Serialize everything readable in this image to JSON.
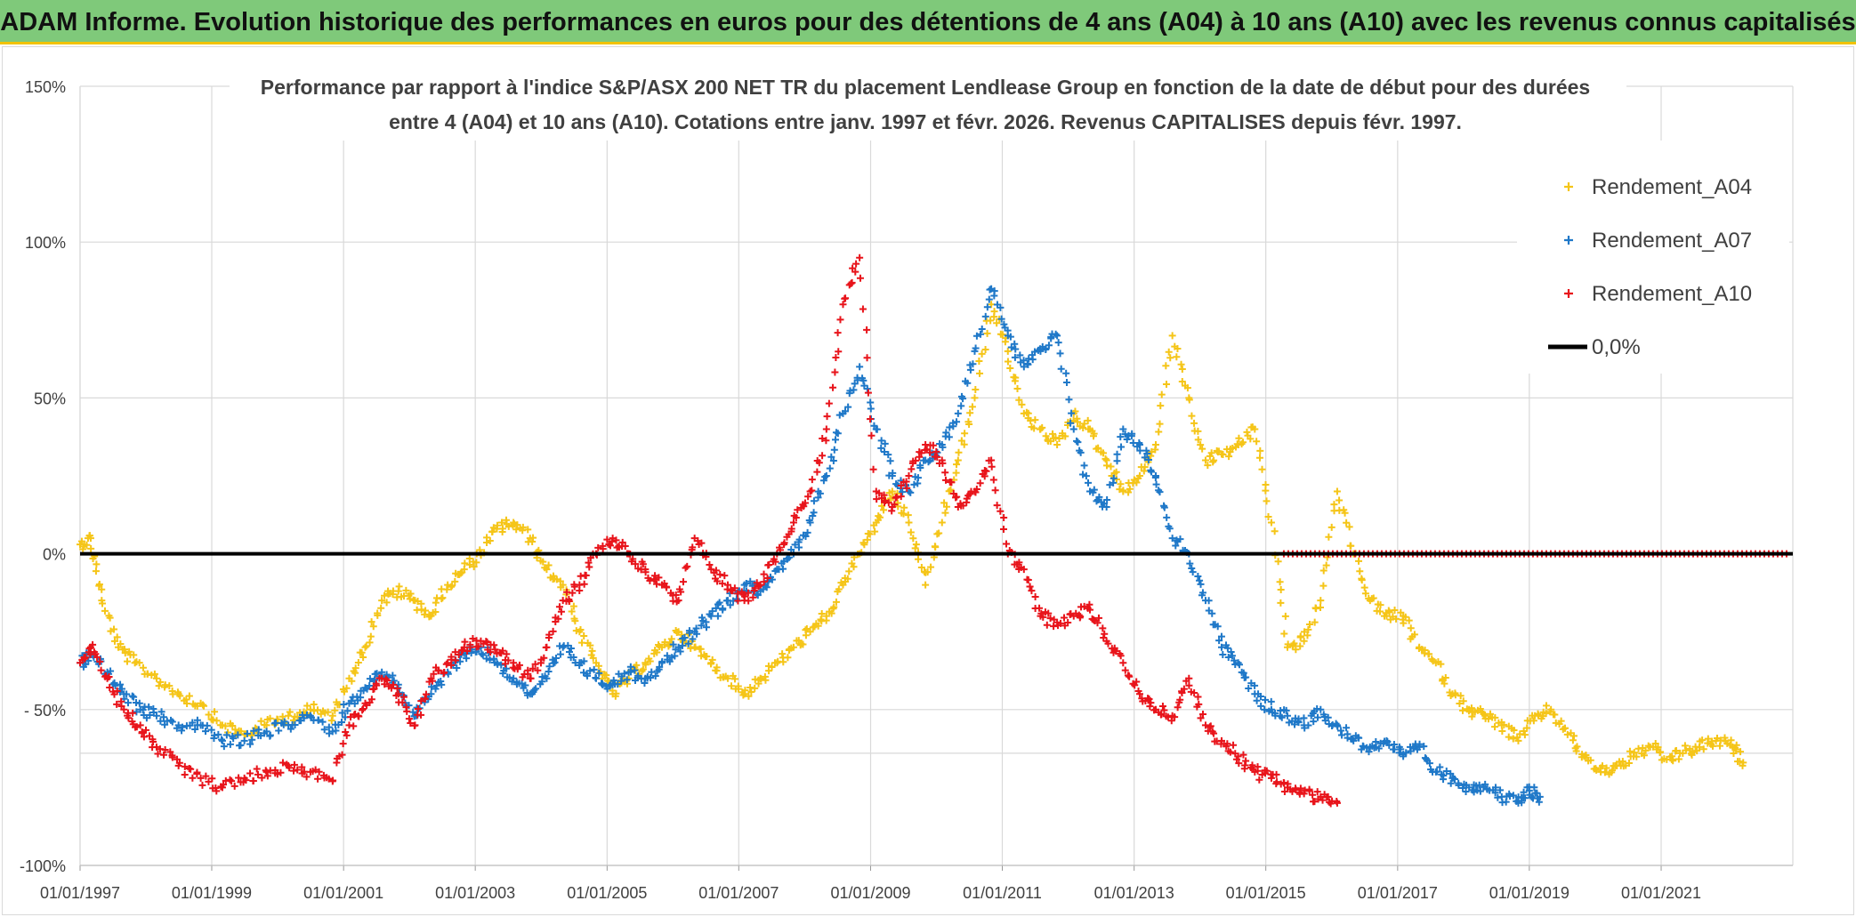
{
  "header": {
    "title": "ADAM Informe. Evolution historique des performances en euros pour des détentions de 4 ans (A04) à 10 ans (A10) avec les revenus connus capitalisés"
  },
  "chart_data": {
    "type": "scatter",
    "title": "Performance par rapport à l'indice S&P/ASX 200 NET TR  du placement Lendlease Group en fonction de la date de début pour des durées",
    "subtitle": "entre 4 (A04) et 10 ans (A10). Cotations entre janv. 1997 et févr. 2026. Revenus CAPITALISES depuis févr. 1997.",
    "xlabel": "",
    "ylabel": "",
    "x_range": [
      "1997-01-01",
      "2023-01-01"
    ],
    "ylim": [
      -100,
      150
    ],
    "y_ticks": [
      150,
      100,
      50,
      0,
      -50,
      -100
    ],
    "y_tick_labels": [
      "150%",
      "100%",
      "50%",
      "0%",
      "- 50%",
      "-100%"
    ],
    "x_tick_labels": [
      "01/01/1997",
      "01/01/1999",
      "01/01/2001",
      "01/01/2003",
      "01/01/2005",
      "01/01/2007",
      "01/01/2009",
      "01/01/2011",
      "01/01/2013",
      "01/01/2015",
      "01/01/2017",
      "01/01/2019",
      "01/01/2021"
    ],
    "grid": true,
    "legend_position": "top-right",
    "legend": [
      "Rendement_A04",
      "Rendement_A07",
      "Rendement_A10",
      "0,0%"
    ],
    "reference_line": {
      "name": "0,0%",
      "value": 0,
      "color": "#000000"
    },
    "series": [
      {
        "name": "Rendement_A04",
        "color": "#f5c518",
        "marker": "+",
        "points": [
          [
            "1997-01-01",
            3
          ],
          [
            "1997-03-01",
            5
          ],
          [
            "1997-05-01",
            -15
          ],
          [
            "1997-08-01",
            -30
          ],
          [
            "1997-11-01",
            -35
          ],
          [
            "1998-03-01",
            -40
          ],
          [
            "1998-07-01",
            -45
          ],
          [
            "1998-11-01",
            -48
          ],
          [
            "1999-03-01",
            -55
          ],
          [
            "1999-07-01",
            -58
          ],
          [
            "1999-11-01",
            -55
          ],
          [
            "2000-03-01",
            -52
          ],
          [
            "2000-07-01",
            -50
          ],
          [
            "2000-11-01",
            -52
          ],
          [
            "2001-02-01",
            -40
          ],
          [
            "2001-05-01",
            -30
          ],
          [
            "2001-08-01",
            -15
          ],
          [
            "2001-11-01",
            -12
          ],
          [
            "2002-02-01",
            -15
          ],
          [
            "2002-05-01",
            -20
          ],
          [
            "2002-08-01",
            -10
          ],
          [
            "2002-11-01",
            -5
          ],
          [
            "2003-02-01",
            0
          ],
          [
            "2003-05-01",
            8
          ],
          [
            "2003-08-01",
            10
          ],
          [
            "2003-11-01",
            5
          ],
          [
            "2004-02-01",
            -5
          ],
          [
            "2004-05-01",
            -10
          ],
          [
            "2004-08-01",
            -25
          ],
          [
            "2004-11-01",
            -35
          ],
          [
            "2005-02-01",
            -45
          ],
          [
            "2005-05-01",
            -40
          ],
          [
            "2005-08-01",
            -35
          ],
          [
            "2005-11-01",
            -30
          ],
          [
            "2006-02-01",
            -25
          ],
          [
            "2006-05-01",
            -30
          ],
          [
            "2006-08-01",
            -35
          ],
          [
            "2006-11-01",
            -40
          ],
          [
            "2007-02-01",
            -45
          ],
          [
            "2007-05-01",
            -40
          ],
          [
            "2007-08-01",
            -35
          ],
          [
            "2007-11-01",
            -30
          ],
          [
            "2008-02-01",
            -25
          ],
          [
            "2008-05-01",
            -20
          ],
          [
            "2008-08-01",
            -10
          ],
          [
            "2008-11-01",
            0
          ],
          [
            "2009-02-01",
            10
          ],
          [
            "2009-05-01",
            20
          ],
          [
            "2009-08-01",
            10
          ],
          [
            "2009-11-01",
            -10
          ],
          [
            "2010-02-01",
            10
          ],
          [
            "2010-05-01",
            30
          ],
          [
            "2010-08-01",
            50
          ],
          [
            "2010-11-01",
            80
          ],
          [
            "2011-02-01",
            65
          ],
          [
            "2011-05-01",
            45
          ],
          [
            "2011-08-01",
            40
          ],
          [
            "2011-11-01",
            35
          ],
          [
            "2012-02-01",
            45
          ],
          [
            "2012-05-01",
            40
          ],
          [
            "2012-08-01",
            30
          ],
          [
            "2012-11-01",
            20
          ],
          [
            "2013-02-01",
            25
          ],
          [
            "2013-05-01",
            35
          ],
          [
            "2013-08-01",
            70
          ],
          [
            "2013-11-01",
            50
          ],
          [
            "2014-02-01",
            30
          ],
          [
            "2014-05-01",
            32
          ],
          [
            "2014-08-01",
            35
          ],
          [
            "2014-11-01",
            40
          ],
          [
            "2015-02-01",
            10
          ],
          [
            "2015-05-01",
            -30
          ],
          [
            "2015-08-01",
            -28
          ],
          [
            "2015-11-01",
            -15
          ],
          [
            "2016-02-01",
            20
          ],
          [
            "2016-05-01",
            0
          ],
          [
            "2016-08-01",
            -15
          ],
          [
            "2016-11-01",
            -20
          ],
          [
            "2017-02-01",
            -20
          ],
          [
            "2017-05-01",
            -30
          ],
          [
            "2017-08-01",
            -35
          ],
          [
            "2017-11-01",
            -45
          ],
          [
            "2018-02-01",
            -50
          ],
          [
            "2018-05-01",
            -52
          ],
          [
            "2018-08-01",
            -55
          ],
          [
            "2018-11-01",
            -60
          ],
          [
            "2019-02-01",
            -52
          ],
          [
            "2019-05-01",
            -50
          ],
          [
            "2019-08-01",
            -58
          ],
          [
            "2019-11-01",
            -65
          ],
          [
            "2020-02-01",
            -70
          ],
          [
            "2020-05-01",
            -68
          ],
          [
            "2020-08-01",
            -65
          ],
          [
            "2020-11-01",
            -62
          ],
          [
            "2021-02-01",
            -66
          ],
          [
            "2021-05-01",
            -64
          ],
          [
            "2021-08-01",
            -62
          ],
          [
            "2021-11-01",
            -60
          ],
          [
            "2022-02-01",
            -62
          ],
          [
            "2022-04-01",
            -67
          ]
        ]
      },
      {
        "name": "Rendement_A07",
        "color": "#1f78c8",
        "marker": "+",
        "points": [
          [
            "1997-01-01",
            -35
          ],
          [
            "1997-03-01",
            -32
          ],
          [
            "1997-06-01",
            -38
          ],
          [
            "1997-09-01",
            -45
          ],
          [
            "1997-12-01",
            -50
          ],
          [
            "1998-03-01",
            -52
          ],
          [
            "1998-07-01",
            -55
          ],
          [
            "1998-11-01",
            -55
          ],
          [
            "1999-03-01",
            -60
          ],
          [
            "1999-07-01",
            -60
          ],
          [
            "1999-11-01",
            -57
          ],
          [
            "2000-03-01",
            -55
          ],
          [
            "2000-07-01",
            -52
          ],
          [
            "2000-11-01",
            -57
          ],
          [
            "2001-02-01",
            -48
          ],
          [
            "2001-05-01",
            -43
          ],
          [
            "2001-08-01",
            -38
          ],
          [
            "2001-11-01",
            -42
          ],
          [
            "2002-02-01",
            -52
          ],
          [
            "2002-05-01",
            -45
          ],
          [
            "2002-08-01",
            -38
          ],
          [
            "2002-11-01",
            -32
          ],
          [
            "2003-02-01",
            -30
          ],
          [
            "2003-05-01",
            -35
          ],
          [
            "2003-08-01",
            -40
          ],
          [
            "2003-11-01",
            -45
          ],
          [
            "2004-02-01",
            -40
          ],
          [
            "2004-05-01",
            -30
          ],
          [
            "2004-08-01",
            -35
          ],
          [
            "2004-11-01",
            -40
          ],
          [
            "2005-02-01",
            -42
          ],
          [
            "2005-05-01",
            -38
          ],
          [
            "2005-08-01",
            -40
          ],
          [
            "2005-11-01",
            -35
          ],
          [
            "2006-02-01",
            -30
          ],
          [
            "2006-05-01",
            -25
          ],
          [
            "2006-08-01",
            -20
          ],
          [
            "2006-11-01",
            -15
          ],
          [
            "2007-02-01",
            -10
          ],
          [
            "2007-05-01",
            -12
          ],
          [
            "2007-08-01",
            -5
          ],
          [
            "2007-11-01",
            0
          ],
          [
            "2008-02-01",
            10
          ],
          [
            "2008-05-01",
            25
          ],
          [
            "2008-08-01",
            45
          ],
          [
            "2008-11-01",
            60
          ],
          [
            "2009-02-01",
            40
          ],
          [
            "2009-05-01",
            25
          ],
          [
            "2009-08-01",
            20
          ],
          [
            "2009-11-01",
            30
          ],
          [
            "2010-02-01",
            35
          ],
          [
            "2010-05-01",
            45
          ],
          [
            "2010-08-01",
            65
          ],
          [
            "2010-11-01",
            85
          ],
          [
            "2011-02-01",
            70
          ],
          [
            "2011-05-01",
            60
          ],
          [
            "2011-08-01",
            65
          ],
          [
            "2011-11-01",
            70
          ],
          [
            "2012-02-01",
            40
          ],
          [
            "2012-05-01",
            20
          ],
          [
            "2012-08-01",
            15
          ],
          [
            "2012-11-01",
            40
          ],
          [
            "2013-02-01",
            35
          ],
          [
            "2013-05-01",
            25
          ],
          [
            "2013-08-01",
            5
          ],
          [
            "2013-11-01",
            0
          ],
          [
            "2014-02-01",
            -15
          ],
          [
            "2014-05-01",
            -30
          ],
          [
            "2014-08-01",
            -35
          ],
          [
            "2014-11-01",
            -45
          ],
          [
            "2015-02-01",
            -50
          ],
          [
            "2015-05-01",
            -52
          ],
          [
            "2015-08-01",
            -55
          ],
          [
            "2015-11-01",
            -50
          ],
          [
            "2016-02-01",
            -55
          ],
          [
            "2016-05-01",
            -60
          ],
          [
            "2016-08-01",
            -62
          ],
          [
            "2016-11-01",
            -60
          ],
          [
            "2017-02-01",
            -65
          ],
          [
            "2017-05-01",
            -62
          ],
          [
            "2017-08-01",
            -70
          ],
          [
            "2017-11-01",
            -72
          ],
          [
            "2018-02-01",
            -75
          ],
          [
            "2018-05-01",
            -74
          ],
          [
            "2018-08-01",
            -78
          ],
          [
            "2018-11-01",
            -80
          ],
          [
            "2019-01-01",
            -76
          ],
          [
            "2019-03-01",
            -78
          ]
        ]
      },
      {
        "name": "Rendement_A10",
        "color": "#e8141b",
        "marker": "+",
        "points": [
          [
            "1997-01-01",
            -35
          ],
          [
            "1997-03-01",
            -30
          ],
          [
            "1997-06-01",
            -40
          ],
          [
            "1997-09-01",
            -50
          ],
          [
            "1997-12-01",
            -55
          ],
          [
            "1998-03-01",
            -62
          ],
          [
            "1998-07-01",
            -68
          ],
          [
            "1998-11-01",
            -72
          ],
          [
            "1999-03-01",
            -75
          ],
          [
            "1999-07-01",
            -72
          ],
          [
            "1999-11-01",
            -70
          ],
          [
            "2000-03-01",
            -68
          ],
          [
            "2000-07-01",
            -70
          ],
          [
            "2000-11-01",
            -73
          ],
          [
            "2001-02-01",
            -55
          ],
          [
            "2001-05-01",
            -48
          ],
          [
            "2001-08-01",
            -40
          ],
          [
            "2001-11-01",
            -45
          ],
          [
            "2002-02-01",
            -55
          ],
          [
            "2002-05-01",
            -40
          ],
          [
            "2002-08-01",
            -35
          ],
          [
            "2002-11-01",
            -30
          ],
          [
            "2003-02-01",
            -28
          ],
          [
            "2003-05-01",
            -32
          ],
          [
            "2003-08-01",
            -35
          ],
          [
            "2003-11-01",
            -40
          ],
          [
            "2004-02-01",
            -30
          ],
          [
            "2004-05-01",
            -15
          ],
          [
            "2004-08-01",
            -10
          ],
          [
            "2004-11-01",
            0
          ],
          [
            "2005-02-01",
            5
          ],
          [
            "2005-05-01",
            0
          ],
          [
            "2005-08-01",
            -5
          ],
          [
            "2005-11-01",
            -10
          ],
          [
            "2006-02-01",
            -15
          ],
          [
            "2006-05-01",
            5
          ],
          [
            "2006-08-01",
            -5
          ],
          [
            "2006-11-01",
            -10
          ],
          [
            "2007-02-01",
            -15
          ],
          [
            "2007-05-01",
            -10
          ],
          [
            "2007-08-01",
            0
          ],
          [
            "2007-11-01",
            10
          ],
          [
            "2008-02-01",
            20
          ],
          [
            "2008-05-01",
            40
          ],
          [
            "2008-08-01",
            80
          ],
          [
            "2008-11-01",
            95
          ],
          [
            "2009-02-01",
            20
          ],
          [
            "2009-05-01",
            15
          ],
          [
            "2009-08-01",
            25
          ],
          [
            "2009-11-01",
            35
          ],
          [
            "2010-02-01",
            30
          ],
          [
            "2010-05-01",
            15
          ],
          [
            "2010-08-01",
            20
          ],
          [
            "2010-11-01",
            30
          ],
          [
            "2011-02-01",
            0
          ],
          [
            "2011-05-01",
            -5
          ],
          [
            "2011-08-01",
            -20
          ],
          [
            "2011-11-01",
            -22
          ],
          [
            "2012-02-01",
            -20
          ],
          [
            "2012-05-01",
            -18
          ],
          [
            "2012-08-01",
            -28
          ],
          [
            "2012-11-01",
            -35
          ],
          [
            "2013-02-01",
            -45
          ],
          [
            "2013-05-01",
            -50
          ],
          [
            "2013-08-01",
            -52
          ],
          [
            "2013-11-01",
            -40
          ],
          [
            "2014-02-01",
            -55
          ],
          [
            "2014-05-01",
            -60
          ],
          [
            "2014-08-01",
            -65
          ],
          [
            "2014-11-01",
            -70
          ],
          [
            "2015-02-01",
            -72
          ],
          [
            "2015-05-01",
            -75
          ],
          [
            "2015-08-01",
            -77
          ],
          [
            "2015-11-01",
            -78
          ],
          [
            "2016-02-01",
            -80
          ]
        ]
      }
    ]
  }
}
